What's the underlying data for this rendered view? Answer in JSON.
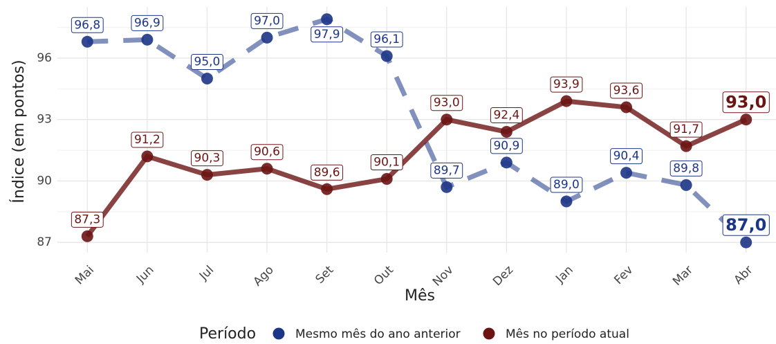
{
  "chart_data": {
    "type": "line",
    "x_label": "Mês",
    "y_label": "Índice (em pontos)",
    "legend_title": "Período",
    "categories": [
      "Mai",
      "Jun",
      "Jul",
      "Ago",
      "Set",
      "Out",
      "Nov",
      "Dez",
      "Jan",
      "Fev",
      "Mar",
      "Abr"
    ],
    "series": [
      {
        "name": "Mesmo mês do ano anterior",
        "color": "#1c3586",
        "dashed": true,
        "values": [
          96.8,
          96.9,
          95.0,
          97.0,
          97.9,
          96.1,
          89.7,
          90.9,
          89.0,
          90.4,
          89.8,
          87.0
        ],
        "value_labels": [
          "96,8",
          "96,9",
          "95,0",
          "97,0",
          "97,9",
          "96,1",
          "89,7",
          "90,9",
          "89,0",
          "90,4",
          "89,8",
          "87,0"
        ]
      },
      {
        "name": "Mês no período atual",
        "color": "#6b1414",
        "dashed": false,
        "values": [
          87.3,
          91.2,
          90.3,
          90.6,
          89.6,
          90.1,
          93.0,
          92.4,
          93.9,
          93.6,
          91.7,
          93.0
        ],
        "value_labels": [
          "87,3",
          "91,2",
          "90,3",
          "90,6",
          "89,6",
          "90,1",
          "93,0",
          "92,4",
          "93,9",
          "93,6",
          "91,7",
          "93,0"
        ]
      }
    ],
    "ylim": [
      86.5,
      98.5
    ],
    "yticks": [
      87,
      90,
      93,
      96
    ],
    "grid": true,
    "legend_position": "bottom"
  }
}
